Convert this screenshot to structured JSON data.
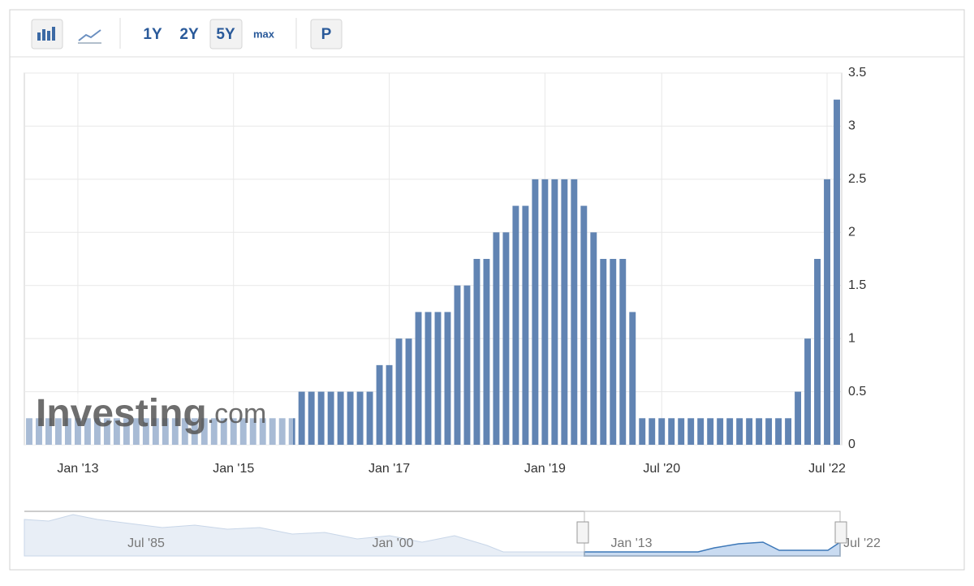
{
  "toolbar": {
    "buttons": [
      "1Y",
      "2Y",
      "5Y",
      "max",
      "P"
    ]
  },
  "chart_data": {
    "type": "bar",
    "categories": [
      null,
      null,
      null,
      null,
      null,
      "Jan '13",
      null,
      null,
      null,
      null,
      null,
      null,
      null,
      null,
      null,
      null,
      null,
      null,
      null,
      null,
      null,
      "Jan '15",
      null,
      null,
      null,
      null,
      null,
      null,
      null,
      null,
      null,
      null,
      null,
      null,
      null,
      null,
      null,
      "Jan '17",
      null,
      null,
      null,
      null,
      null,
      null,
      null,
      null,
      null,
      null,
      null,
      null,
      null,
      null,
      null,
      "Jan '19",
      null,
      null,
      null,
      null,
      null,
      null,
      null,
      null,
      null,
      null,
      null,
      "Jul '20",
      null,
      null,
      null,
      null,
      null,
      null,
      null,
      null,
      null,
      null,
      null,
      null,
      null,
      null,
      null,
      null,
      "Jul '22",
      null
    ],
    "values": [
      0.25,
      0.25,
      0.25,
      0.25,
      0.25,
      0.25,
      0.25,
      0.25,
      0.25,
      0.25,
      0.25,
      0.25,
      0.25,
      0.25,
      0.25,
      0.25,
      0.25,
      0.25,
      0.25,
      0.25,
      0.25,
      0.25,
      0.25,
      0.25,
      0.25,
      0.25,
      0.25,
      0.25,
      0.5,
      0.5,
      0.5,
      0.5,
      0.5,
      0.5,
      0.5,
      0.5,
      0.75,
      0.75,
      1,
      1,
      1.25,
      1.25,
      1.25,
      1.25,
      1.5,
      1.5,
      1.75,
      1.75,
      2,
      2,
      2.25,
      2.25,
      2.5,
      2.5,
      2.5,
      2.5,
      2.5,
      2.25,
      2,
      1.75,
      1.75,
      1.75,
      1.25,
      0.25,
      0.25,
      0.25,
      0.25,
      0.25,
      0.25,
      0.25,
      0.25,
      0.25,
      0.25,
      0.25,
      0.25,
      0.25,
      0.25,
      0.25,
      0.25,
      0.5,
      1,
      1.75,
      2.5,
      3.25
    ],
    "color": "#6184b3",
    "ylim": [
      0,
      3.5
    ],
    "yticks": [
      0,
      0.5,
      1,
      1.5,
      2,
      2.5,
      3,
      3.5
    ],
    "grid": true,
    "watermark": [
      "Investing",
      ".com"
    ],
    "navigator_labels": [
      "Jul '85",
      "Jan '00",
      "Jan '13",
      "Jul '22"
    ]
  }
}
